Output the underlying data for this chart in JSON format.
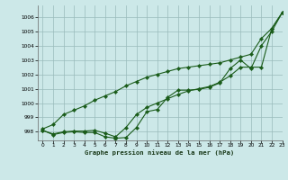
{
  "title": "Graphe pression niveau de la mer (hPa)",
  "background_color": "#cce8e8",
  "grid_color": "#99bbbb",
  "line_color": "#1a5c1a",
  "xlim": [
    -0.5,
    23
  ],
  "ylim": [
    997.4,
    1006.8
  ],
  "yticks": [
    998,
    999,
    1000,
    1001,
    1002,
    1003,
    1004,
    1005,
    1006
  ],
  "xticks": [
    0,
    1,
    2,
    3,
    4,
    5,
    6,
    7,
    8,
    9,
    10,
    11,
    12,
    13,
    14,
    15,
    16,
    17,
    18,
    19,
    20,
    21,
    22,
    23
  ],
  "line_top": [
    998.2,
    998.5,
    999.2,
    999.5,
    999.8,
    1000.2,
    1000.5,
    1000.8,
    1001.2,
    1001.5,
    1001.8,
    1002.0,
    1002.2,
    1002.4,
    1002.5,
    1002.6,
    1002.7,
    1002.8,
    1003.0,
    1003.2,
    1003.4,
    1004.5,
    1005.2,
    1006.3
  ],
  "line_mid": [
    998.1,
    997.85,
    998.0,
    998.05,
    998.05,
    998.1,
    997.9,
    997.65,
    998.3,
    999.2,
    999.7,
    1000.0,
    1000.3,
    1000.6,
    1000.85,
    1001.0,
    1001.15,
    1001.45,
    1001.9,
    1002.5,
    1002.5,
    1002.5,
    1005.2,
    1006.3
  ],
  "line_bot": [
    998.1,
    997.8,
    997.95,
    998.0,
    997.95,
    997.95,
    997.65,
    997.55,
    997.6,
    998.3,
    999.4,
    999.55,
    1000.4,
    1000.9,
    1000.9,
    1000.95,
    1001.1,
    1001.4,
    1002.4,
    1003.0,
    1002.4,
    1004.0,
    1005.0,
    1006.3
  ]
}
